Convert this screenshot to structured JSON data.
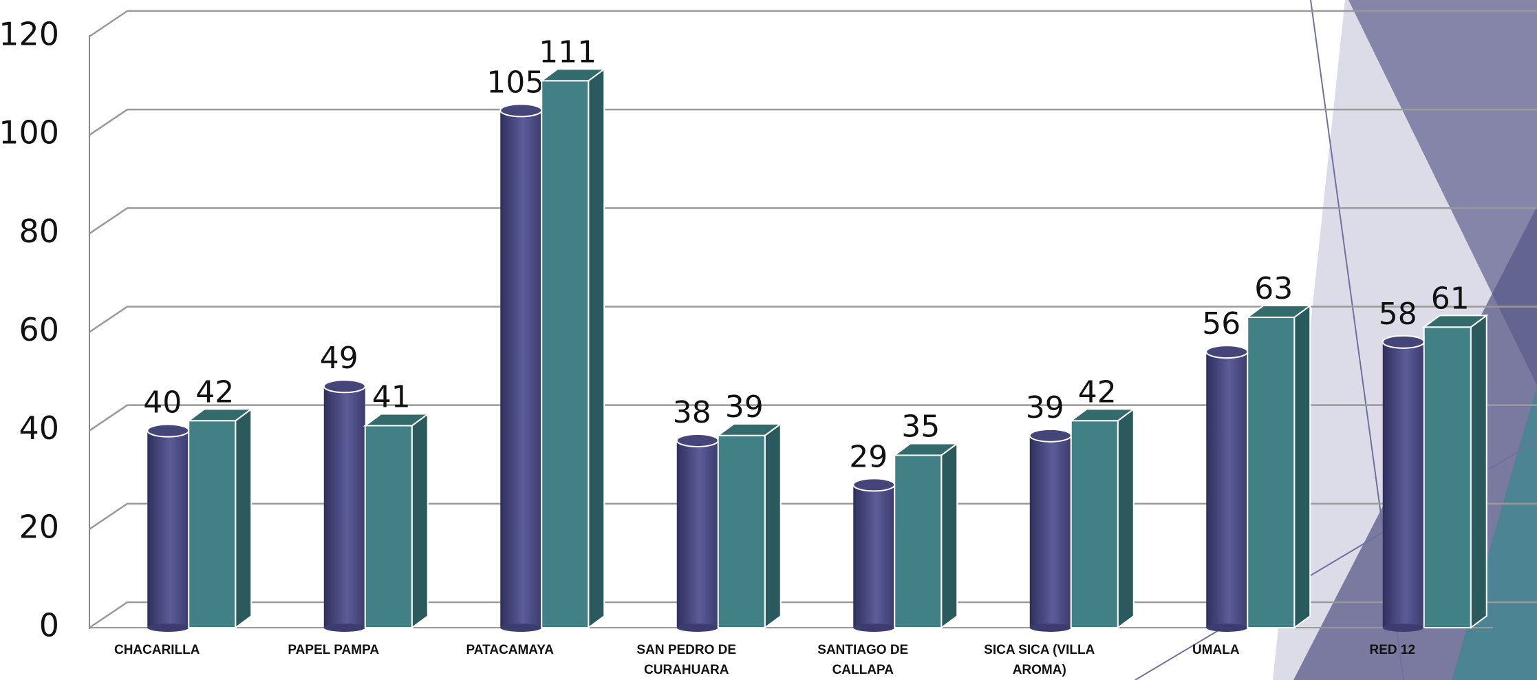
{
  "chart_data": {
    "type": "bar",
    "categories": [
      "CHACARILLA",
      "PAPEL PAMPA",
      "PATACAMAYA",
      "SAN PEDRO DE CURAHUARA",
      "SANTIAGO DE CALLAPA",
      "SICA SICA (VILLA AROMA)",
      "UMALA",
      "RED 12"
    ],
    "series": [
      {
        "color": "#54548c",
        "values": [
          40,
          49,
          105,
          38,
          29,
          39,
          56,
          58
        ]
      },
      {
        "color": "#418084",
        "values": [
          42,
          41,
          111,
          39,
          35,
          42,
          63,
          61
        ]
      }
    ],
    "ylim": [
      0,
      120
    ],
    "yticks": [
      0,
      20,
      40,
      60,
      80,
      100,
      120
    ],
    "grid": true
  }
}
